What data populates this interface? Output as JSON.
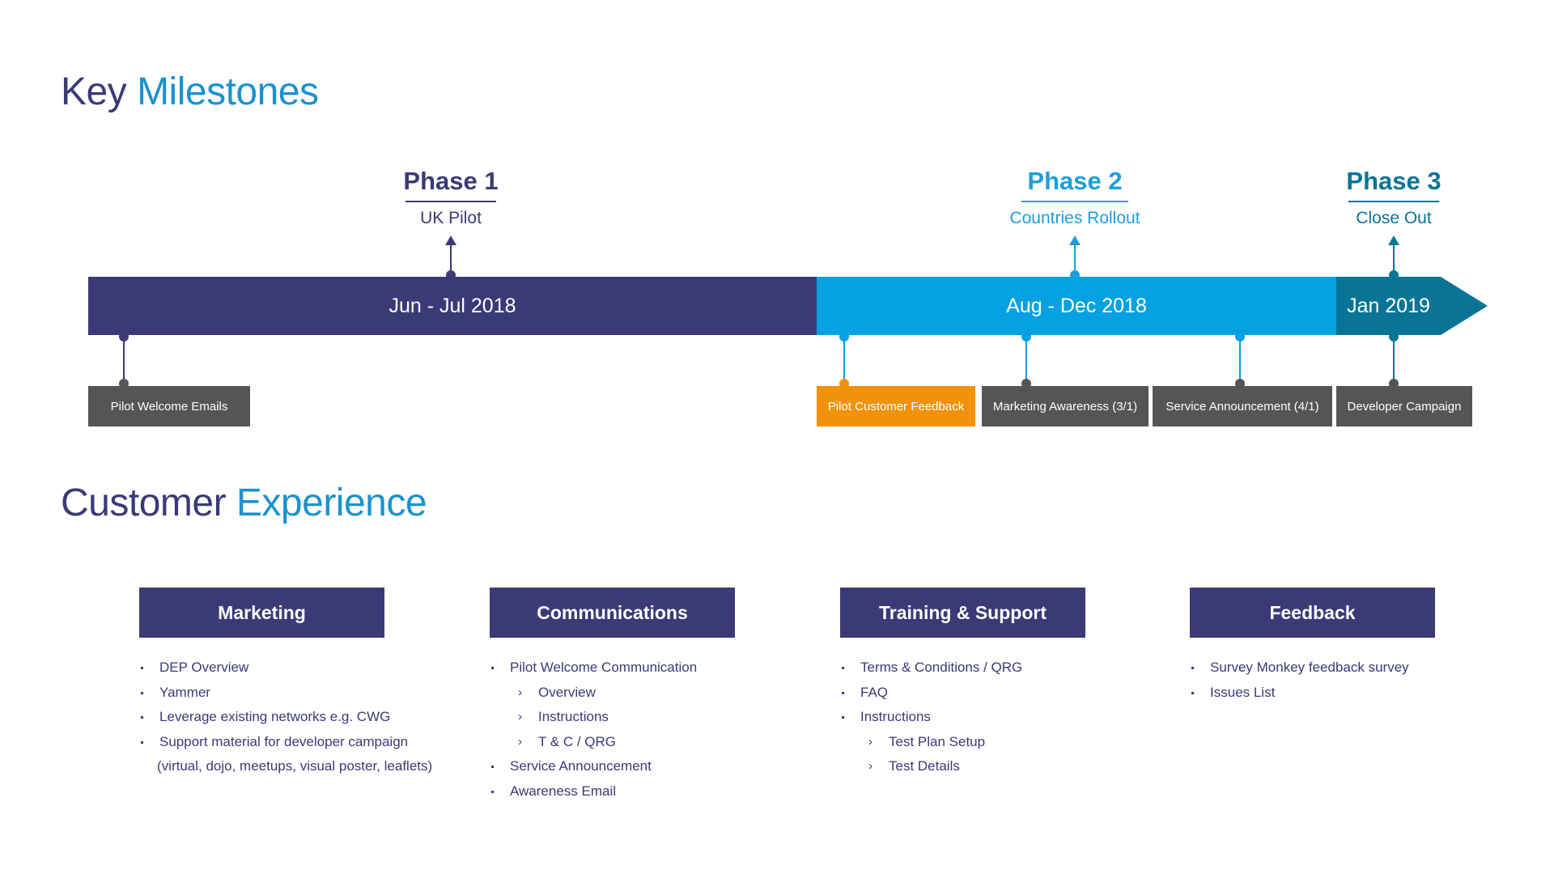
{
  "key_milestones": {
    "title_word1": "Key",
    "title_word2": "Milestones",
    "phases": [
      {
        "name": "Phase 1",
        "subtitle": "UK Pilot",
        "color": "#3b3a76"
      },
      {
        "name": "Phase 2",
        "subtitle": "Countries Rollout",
        "color": "#1b9fda"
      },
      {
        "name": "Phase 3",
        "subtitle": "Close Out",
        "color": "#0a7496"
      }
    ],
    "timeline": [
      {
        "label": "Jun - Jul 2018",
        "color": "#3b3a76"
      },
      {
        "label": "Aug - Dec 2018",
        "color": "#05a1e0"
      },
      {
        "label": "Jan 2019",
        "color": "#0a7496"
      }
    ],
    "milestones": [
      {
        "label": "Pilot Welcome Emails",
        "color": "#555555"
      },
      {
        "label": "Pilot Customer Feedback",
        "color": "#f2920a"
      },
      {
        "label": "Marketing Awareness (3/1)",
        "color": "#555555"
      },
      {
        "label": "Service Announcement (4/1)",
        "color": "#555555"
      },
      {
        "label": "Developer Campaign",
        "color": "#555555"
      }
    ]
  },
  "customer_experience": {
    "title_word1": "Customer",
    "title_word2": "Experience",
    "categories": [
      {
        "header": "Marketing",
        "items": [
          {
            "text": "DEP Overview"
          },
          {
            "text": "Yammer"
          },
          {
            "text": "Leverage existing networks e.g. CWG"
          },
          {
            "text": "Support material for developer campaign"
          },
          {
            "text": "(virtual, dojo, meetups, visual poster, leaflets)"
          }
        ]
      },
      {
        "header": "Communications",
        "items": [
          {
            "text": "Pilot Welcome Communication"
          },
          {
            "text": "Overview"
          },
          {
            "text": "Instructions"
          },
          {
            "text": "T & C / QRG"
          },
          {
            "text": "Service Announcement"
          },
          {
            "text": "Awareness Email"
          }
        ]
      },
      {
        "header": "Training & Support",
        "items": [
          {
            "text": "Terms & Conditions / QRG"
          },
          {
            "text": "FAQ"
          },
          {
            "text": "Instructions"
          },
          {
            "text": "Test Plan Setup"
          },
          {
            "text": "Test Details"
          }
        ]
      },
      {
        "header": "Feedback",
        "items": [
          {
            "text": "Survey Monkey feedback survey"
          },
          {
            "text": "Issues List"
          }
        ]
      }
    ]
  }
}
